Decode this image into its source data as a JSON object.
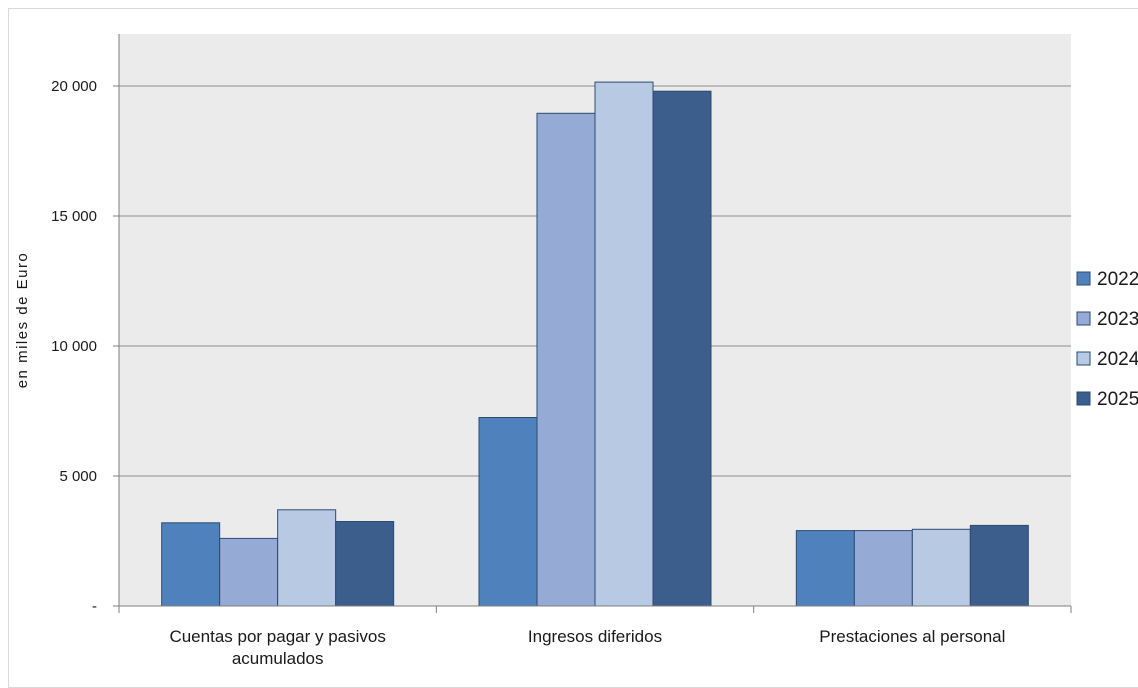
{
  "chart_data": {
    "type": "bar",
    "title": "",
    "ylabel": "en miles de Euro",
    "xlabel": "",
    "ylim": [
      0,
      22000
    ],
    "yticks": [
      {
        "value": 0,
        "label": "-"
      },
      {
        "value": 5000,
        "label": "5 000"
      },
      {
        "value": 10000,
        "label": "10 000"
      },
      {
        "value": 15000,
        "label": "15 000"
      },
      {
        "value": 20000,
        "label": "20 000"
      }
    ],
    "categories": [
      [
        "Cuentas por pagar y pasivos",
        "acumulados"
      ],
      [
        "Ingresos diferidos"
      ],
      [
        "Prestaciones al personal"
      ]
    ],
    "series": [
      {
        "name": "2022",
        "color": "#4f81bd",
        "values": [
          3200,
          7250,
          2900
        ]
      },
      {
        "name": "2023",
        "color": "#95aad4",
        "values": [
          2600,
          18950,
          2900
        ]
      },
      {
        "name": "2024",
        "color": "#b8c9e3",
        "values": [
          3700,
          20150,
          2950
        ]
      },
      {
        "name": "2025",
        "color": "#3b5e8c",
        "values": [
          3250,
          19800,
          3100
        ]
      }
    ],
    "grid": true,
    "legend_position": "right",
    "plot_background": "#ebebeb"
  }
}
